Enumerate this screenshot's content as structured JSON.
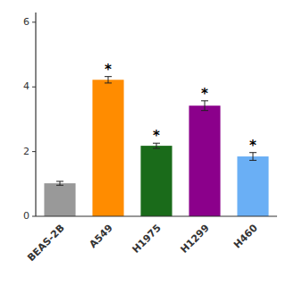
{
  "chart_data": {
    "type": "bar",
    "categories": [
      "BEAS-2B",
      "A549",
      "H1975",
      "H1299",
      "H460"
    ],
    "values": [
      1.02,
      4.22,
      2.18,
      3.42,
      1.85
    ],
    "errors": [
      0.06,
      0.1,
      0.08,
      0.15,
      0.12
    ],
    "annotations": [
      null,
      "*",
      "*",
      "*",
      "*"
    ],
    "colors": [
      "#999999",
      "#FF8C00",
      "#1a6b1a",
      "#8B008B",
      "#6aaff5"
    ],
    "ylim": [
      0,
      6.3
    ],
    "yticks": [
      0,
      2,
      4,
      6
    ],
    "grid": false
  }
}
